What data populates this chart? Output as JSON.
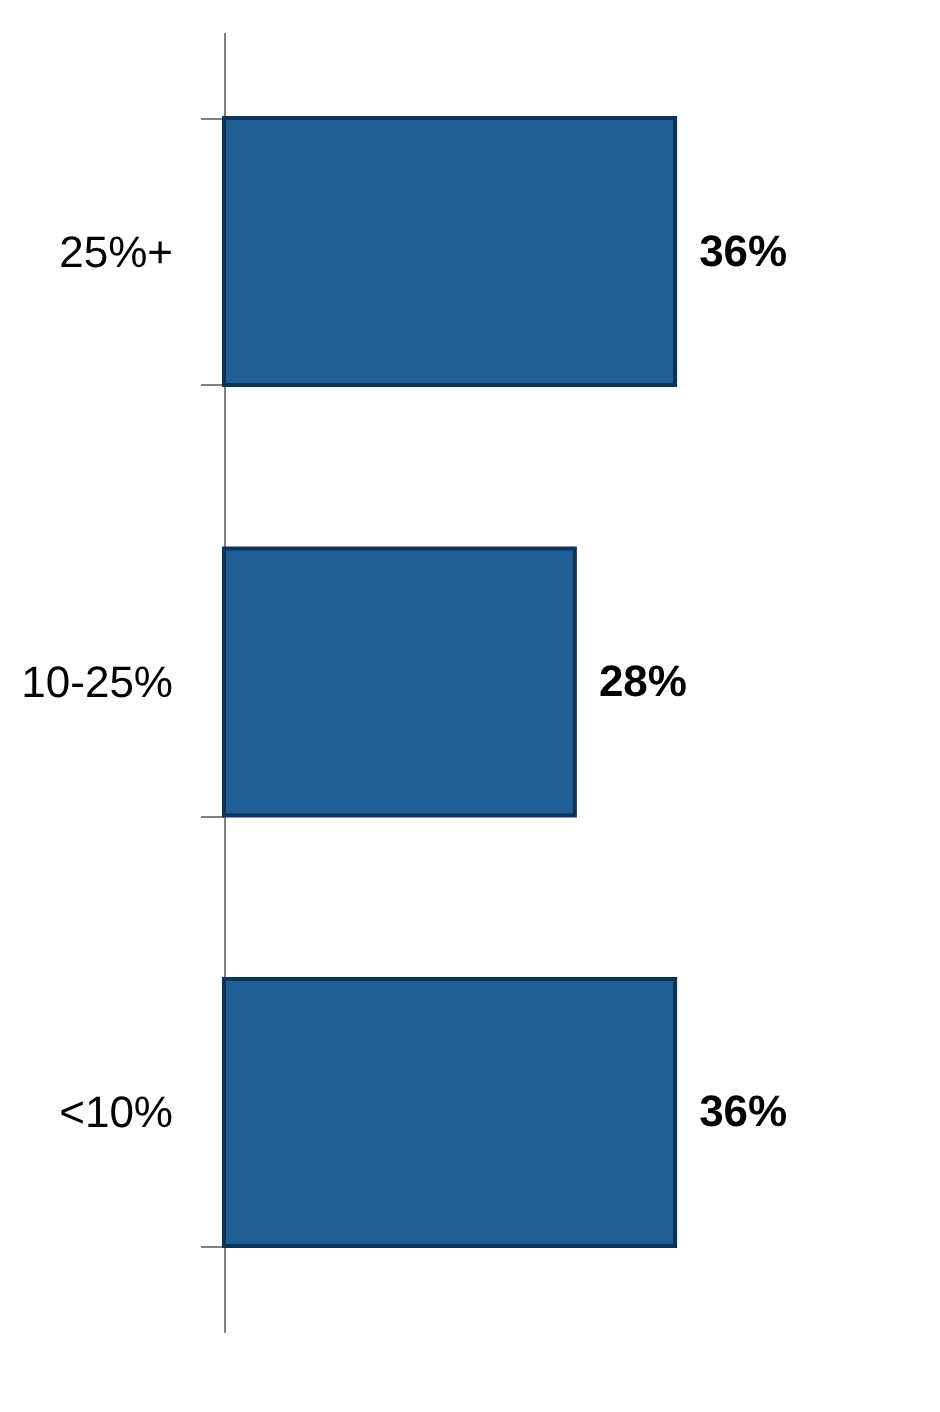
{
  "chart_data": {
    "type": "bar",
    "orientation": "horizontal",
    "categories": [
      "25%+",
      "10-25%",
      "<10%"
    ],
    "values": [
      36,
      28,
      36
    ],
    "value_labels": [
      "36%",
      "28%",
      "36%"
    ],
    "color": "#1f5f96",
    "grid": false
  }
}
